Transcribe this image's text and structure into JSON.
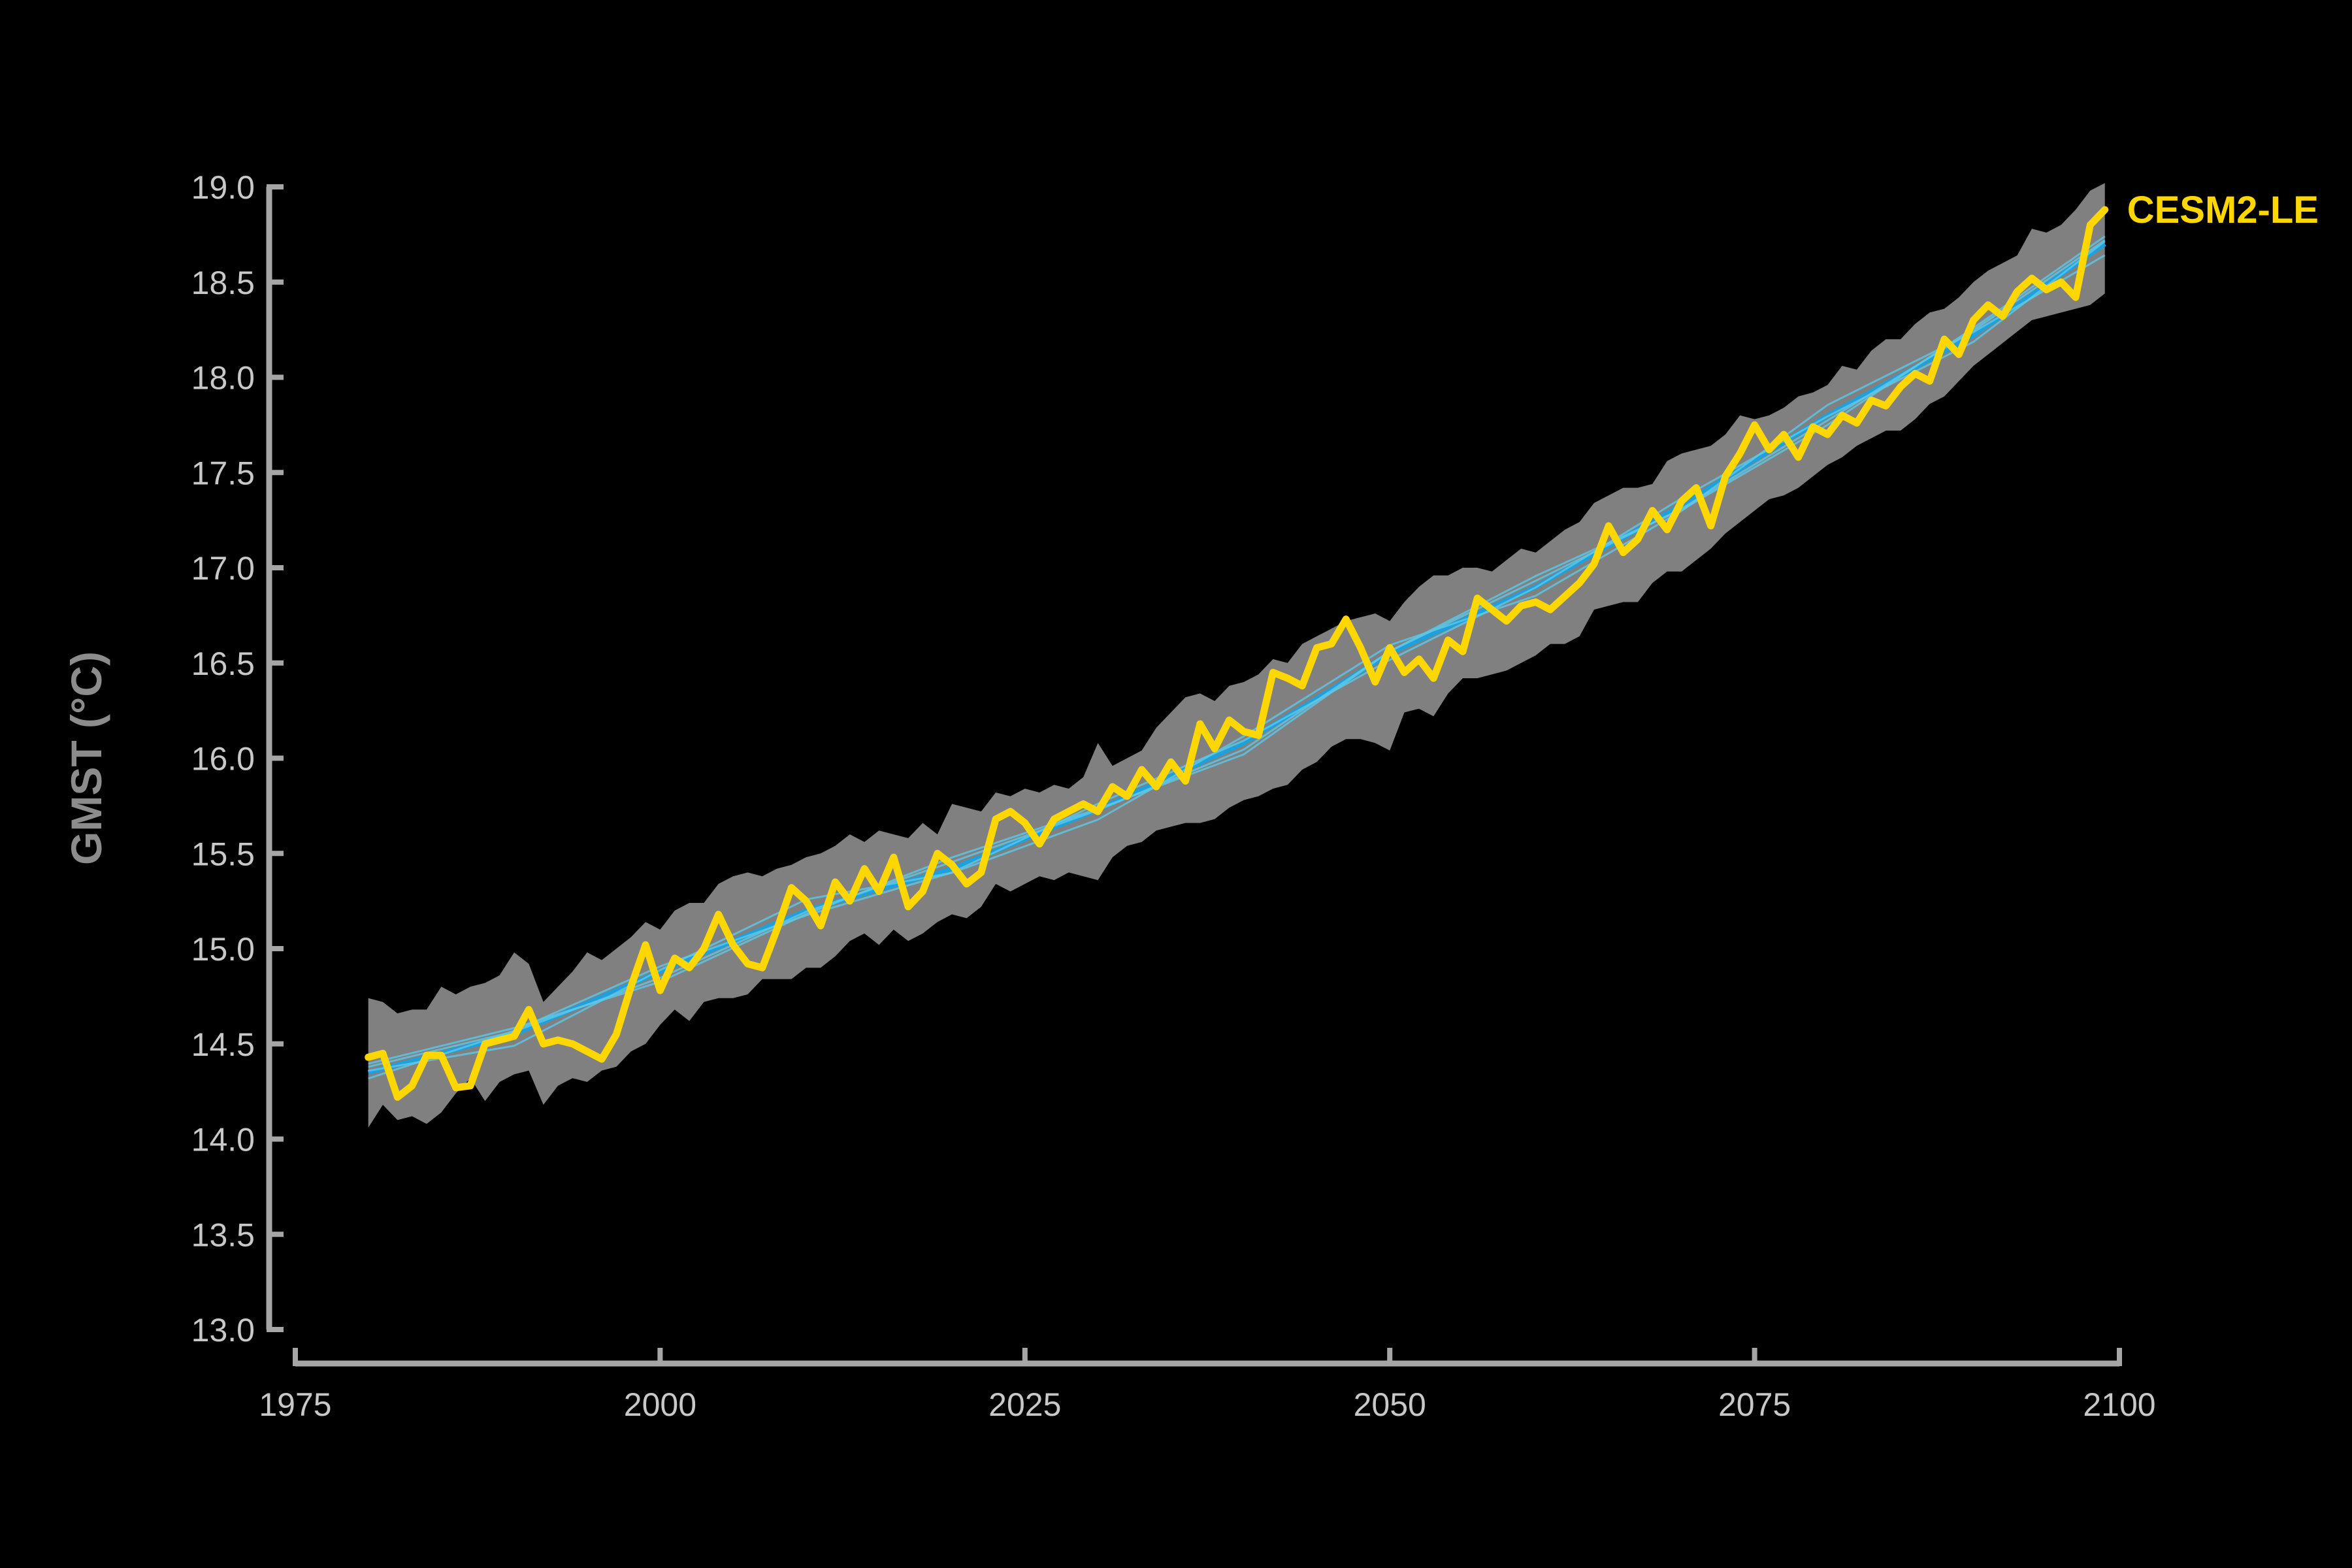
{
  "chart_data": {
    "type": "line",
    "title": "",
    "xlabel": "",
    "ylabel": "GMST (°C)",
    "xlim": [
      1975,
      2100
    ],
    "ylim": [
      13.0,
      19.0
    ],
    "x_ticks": [
      "1975",
      "2000",
      "2025",
      "2050",
      "2075",
      "2100"
    ],
    "y_ticks": [
      "13.0",
      "13.5",
      "14.0",
      "14.5",
      "15.0",
      "15.5",
      "16.0",
      "16.5",
      "17.0",
      "17.5",
      "18.0",
      "18.5",
      "19.0"
    ],
    "grid": false,
    "legend": "none",
    "colors": {
      "background": "#000000",
      "axis": "#a6a6a6",
      "tick_label": "#c8c8c8",
      "axis_title": "#8c8c8c",
      "ensemble_band": "#808080",
      "member": "#ffd700",
      "trend": "#1ea0dc",
      "trend_light": "#5cc8e8"
    },
    "series": [
      {
        "name": "CESM2-LE",
        "color": "#ffd700",
        "x": [
          1980,
          1981,
          1982,
          1983,
          1984,
          1985,
          1986,
          1987,
          1988,
          1989,
          1990,
          1991,
          1992,
          1993,
          1994,
          1995,
          1996,
          1997,
          1998,
          1999,
          2000,
          2001,
          2002,
          2003,
          2004,
          2005,
          2006,
          2007,
          2008,
          2009,
          2010,
          2011,
          2012,
          2013,
          2014,
          2015,
          2016,
          2017,
          2018,
          2019,
          2020,
          2021,
          2022,
          2023,
          2024,
          2025,
          2026,
          2027,
          2028,
          2029,
          2030,
          2031,
          2032,
          2033,
          2034,
          2035,
          2036,
          2037,
          2038,
          2039,
          2040,
          2041,
          2042,
          2043,
          2044,
          2045,
          2046,
          2047,
          2048,
          2049,
          2050,
          2051,
          2052,
          2053,
          2054,
          2055,
          2056,
          2057,
          2058,
          2059,
          2060,
          2061,
          2062,
          2063,
          2064,
          2065,
          2066,
          2067,
          2068,
          2069,
          2070,
          2071,
          2072,
          2073,
          2074,
          2075,
          2076,
          2077,
          2078,
          2079,
          2080,
          2081,
          2082,
          2083,
          2084,
          2085,
          2086,
          2087,
          2088,
          2089,
          2090,
          2091,
          2092,
          2093,
          2094,
          2095,
          2096,
          2097,
          2098,
          2099
        ],
        "values": [
          14.43,
          14.45,
          14.22,
          14.28,
          14.44,
          14.44,
          14.27,
          14.28,
          14.5,
          14.52,
          14.54,
          14.68,
          14.5,
          14.52,
          14.5,
          14.46,
          14.42,
          14.55,
          14.8,
          15.02,
          14.78,
          14.95,
          14.9,
          15.0,
          15.18,
          15.02,
          14.92,
          14.9,
          15.1,
          15.32,
          15.25,
          15.12,
          15.35,
          15.25,
          15.42,
          15.3,
          15.48,
          15.22,
          15.3,
          15.5,
          15.44,
          15.34,
          15.4,
          15.68,
          15.72,
          15.66,
          15.55,
          15.68,
          15.72,
          15.76,
          15.72,
          15.85,
          15.8,
          15.94,
          15.85,
          15.98,
          15.88,
          16.18,
          16.05,
          16.2,
          16.14,
          16.12,
          16.45,
          16.42,
          16.38,
          16.58,
          16.6,
          16.73,
          16.58,
          16.4,
          16.58,
          16.45,
          16.52,
          16.42,
          16.62,
          16.56,
          16.84,
          16.78,
          16.72,
          16.8,
          16.82,
          16.78,
          16.85,
          16.92,
          17.02,
          17.22,
          17.08,
          17.15,
          17.3,
          17.2,
          17.35,
          17.42,
          17.22,
          17.48,
          17.6,
          17.75,
          17.62,
          17.7,
          17.58,
          17.74,
          17.7,
          17.8,
          17.76,
          17.88,
          17.85,
          17.95,
          18.02,
          17.98,
          18.2,
          18.12,
          18.3,
          18.38,
          18.32,
          18.45,
          18.52,
          18.46,
          18.5,
          18.42,
          18.8,
          18.88
        ]
      }
    ],
    "trend": {
      "x": [
        1980,
        1990,
        2000,
        2010,
        2020,
        2030,
        2040,
        2050,
        2060,
        2070,
        2080,
        2090,
        2099
      ],
      "values": [
        14.35,
        14.55,
        14.88,
        15.2,
        15.42,
        15.73,
        16.08,
        16.55,
        16.9,
        17.33,
        17.8,
        18.22,
        18.7
      ]
    },
    "band": {
      "x": [
        1980,
        1981,
        1982,
        1983,
        1984,
        1985,
        1986,
        1987,
        1988,
        1989,
        1990,
        1991,
        1992,
        1993,
        1994,
        1995,
        1996,
        1997,
        1998,
        1999,
        2000,
        2001,
        2002,
        2003,
        2004,
        2005,
        2006,
        2007,
        2008,
        2009,
        2010,
        2011,
        2012,
        2013,
        2014,
        2015,
        2016,
        2017,
        2018,
        2019,
        2020,
        2021,
        2022,
        2023,
        2024,
        2025,
        2026,
        2027,
        2028,
        2029,
        2030,
        2031,
        2032,
        2033,
        2034,
        2035,
        2036,
        2037,
        2038,
        2039,
        2040,
        2041,
        2042,
        2043,
        2044,
        2045,
        2046,
        2047,
        2048,
        2049,
        2050,
        2051,
        2052,
        2053,
        2054,
        2055,
        2056,
        2057,
        2058,
        2059,
        2060,
        2061,
        2062,
        2063,
        2064,
        2065,
        2066,
        2067,
        2068,
        2069,
        2070,
        2071,
        2072,
        2073,
        2074,
        2075,
        2076,
        2077,
        2078,
        2079,
        2080,
        2081,
        2082,
        2083,
        2084,
        2085,
        2086,
        2087,
        2088,
        2089,
        2090,
        2091,
        2092,
        2093,
        2094,
        2095,
        2096,
        2097,
        2098,
        2099
      ],
      "upper": [
        14.74,
        14.72,
        14.66,
        14.68,
        14.68,
        14.8,
        14.76,
        14.8,
        14.82,
        14.86,
        14.98,
        14.92,
        14.72,
        14.8,
        14.88,
        14.98,
        14.94,
        15.0,
        15.06,
        15.14,
        15.1,
        15.2,
        15.24,
        15.24,
        15.34,
        15.38,
        15.4,
        15.38,
        15.42,
        15.44,
        15.48,
        15.5,
        15.54,
        15.6,
        15.56,
        15.62,
        15.6,
        15.58,
        15.66,
        15.6,
        15.76,
        15.74,
        15.72,
        15.82,
        15.8,
        15.84,
        15.82,
        15.86,
        15.84,
        15.9,
        16.08,
        15.96,
        16.0,
        16.04,
        16.16,
        16.24,
        16.32,
        16.34,
        16.3,
        16.38,
        16.4,
        16.44,
        16.52,
        16.5,
        16.6,
        16.64,
        16.68,
        16.72,
        16.74,
        16.76,
        16.72,
        16.82,
        16.9,
        16.96,
        16.96,
        17.0,
        17.0,
        16.98,
        17.04,
        17.1,
        17.08,
        17.14,
        17.2,
        17.24,
        17.34,
        17.38,
        17.42,
        17.42,
        17.44,
        17.56,
        17.6,
        17.62,
        17.64,
        17.7,
        17.8,
        17.78,
        17.8,
        17.84,
        17.9,
        17.92,
        17.96,
        18.06,
        18.04,
        18.14,
        18.2,
        18.2,
        18.28,
        18.34,
        18.36,
        18.42,
        18.5,
        18.56,
        18.6,
        18.64,
        18.78,
        18.76,
        18.8,
        18.88,
        18.98,
        19.02
      ],
      "lower": [
        14.06,
        14.18,
        14.1,
        14.12,
        14.08,
        14.14,
        14.24,
        14.32,
        14.2,
        14.3,
        14.34,
        14.36,
        14.18,
        14.28,
        14.32,
        14.3,
        14.36,
        14.38,
        14.46,
        14.5,
        14.6,
        14.68,
        14.62,
        14.72,
        14.74,
        14.74,
        14.76,
        14.84,
        14.84,
        14.84,
        14.9,
        14.9,
        14.96,
        15.04,
        15.08,
        15.02,
        15.1,
        15.04,
        15.08,
        15.14,
        15.18,
        15.16,
        15.22,
        15.34,
        15.3,
        15.34,
        15.38,
        15.36,
        15.4,
        15.38,
        15.36,
        15.48,
        15.54,
        15.56,
        15.62,
        15.64,
        15.66,
        15.66,
        15.68,
        15.74,
        15.78,
        15.8,
        15.84,
        15.86,
        15.94,
        15.98,
        16.06,
        16.1,
        16.1,
        16.08,
        16.04,
        16.24,
        16.26,
        16.22,
        16.34,
        16.42,
        16.42,
        16.44,
        16.46,
        16.5,
        16.54,
        16.6,
        16.6,
        16.64,
        16.78,
        16.8,
        16.82,
        16.82,
        16.92,
        16.98,
        16.98,
        17.04,
        17.1,
        17.18,
        17.24,
        17.3,
        17.36,
        17.38,
        17.42,
        17.48,
        17.54,
        17.58,
        17.64,
        17.68,
        17.72,
        17.72,
        17.78,
        17.86,
        17.9,
        17.98,
        18.06,
        18.12,
        18.18,
        18.24,
        18.3,
        18.32,
        18.34,
        18.36,
        18.38,
        18.44
      ]
    }
  }
}
